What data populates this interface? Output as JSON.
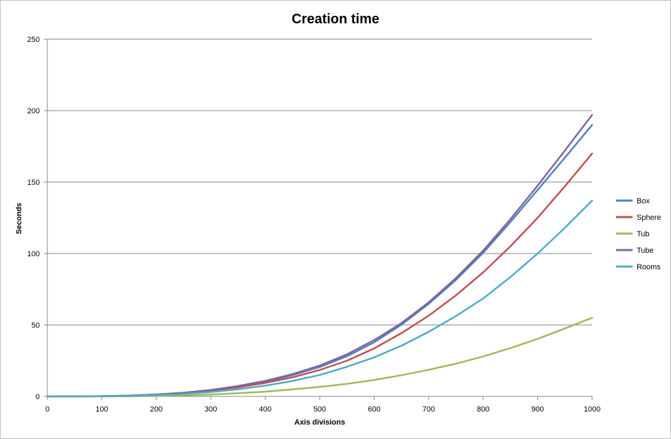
{
  "chart_data": {
    "type": "line",
    "title": "Creation time",
    "xlabel": "Axis divisions",
    "ylabel": "Seconds",
    "xlim": [
      0,
      1000
    ],
    "ylim": [
      0,
      250
    ],
    "xticks": [
      0,
      100,
      200,
      300,
      400,
      500,
      600,
      700,
      800,
      900,
      1000
    ],
    "yticks": [
      0,
      50,
      100,
      150,
      200,
      250
    ],
    "grid": "horizontal",
    "legend_position": "right",
    "x": [
      0,
      50,
      100,
      150,
      200,
      250,
      300,
      350,
      400,
      450,
      500,
      550,
      600,
      650,
      700,
      750,
      800,
      850,
      900,
      950,
      1000
    ],
    "series": [
      {
        "name": "Box",
        "color": "#4F81BD",
        "values": [
          0,
          0,
          0.2,
          0.5,
          1.3,
          2.4,
          4.2,
          6.9,
          10.3,
          14.8,
          20.6,
          28.1,
          37.9,
          50.2,
          64.8,
          81.5,
          100.5,
          122.0,
          144.5,
          167.0,
          190.0
        ]
      },
      {
        "name": "Sphere",
        "color": "#C0504D",
        "values": [
          0,
          0,
          0.2,
          0.5,
          1.2,
          2.3,
          4.0,
          6.3,
          9.4,
          13.3,
          18.5,
          25.0,
          33.6,
          44.3,
          56.5,
          70.7,
          86.8,
          105.0,
          125.0,
          147.0,
          170.0
        ]
      },
      {
        "name": "Tub",
        "color": "#9BBB59",
        "values": [
          0,
          0,
          0,
          0.1,
          0.3,
          0.7,
          1.3,
          2.2,
          3.3,
          4.9,
          6.7,
          8.8,
          11.5,
          14.8,
          18.6,
          22.9,
          28.0,
          33.8,
          40.3,
          47.5,
          55.0
        ]
      },
      {
        "name": "Tube",
        "color": "#8064A2",
        "values": [
          0,
          0,
          0.2,
          0.6,
          1.4,
          2.6,
          4.5,
          7.3,
          10.9,
          15.6,
          21.6,
          29.4,
          39.4,
          51.3,
          65.8,
          82.8,
          102.0,
          124.0,
          147.5,
          172.0,
          197.0
        ]
      },
      {
        "name": "Rooms",
        "color": "#4BACC6",
        "values": [
          0,
          0,
          0.1,
          0.4,
          1.0,
          1.8,
          3.1,
          5.0,
          7.5,
          10.8,
          15.0,
          20.7,
          27.3,
          35.5,
          45.2,
          56.2,
          68.5,
          83.5,
          100.0,
          118.0,
          137.0
        ]
      }
    ]
  }
}
